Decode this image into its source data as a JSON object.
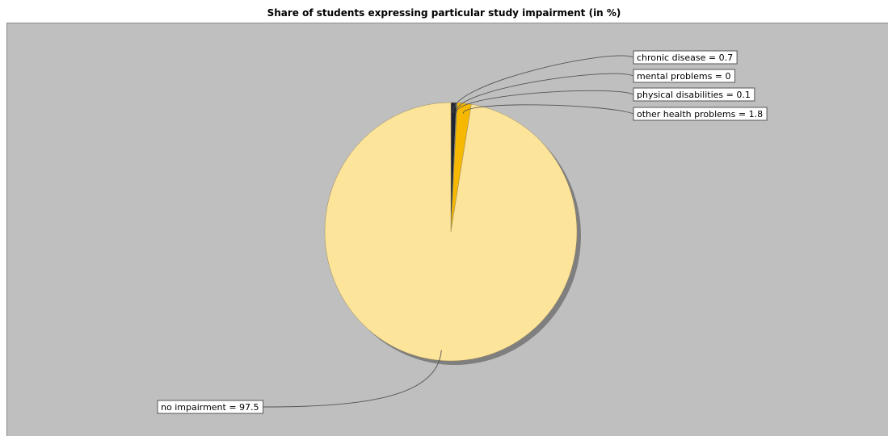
{
  "chart_data": {
    "type": "pie",
    "title": "Share of students expressing particular study impairment (in %)",
    "slices": [
      {
        "name": "chronic disease",
        "value": 0.7,
        "label": "chronic disease = 0.7",
        "color": "#1f2433"
      },
      {
        "name": "mental problems",
        "value": 0,
        "label": "mental problems = 0",
        "color": "#0b3d7a"
      },
      {
        "name": "physical disabilities",
        "value": 0.1,
        "label": "physical disabilities = 0.1",
        "color": "#3d7fb8"
      },
      {
        "name": "other health problems",
        "value": 1.8,
        "label": "other health problems = 1.8",
        "color": "#f6b800"
      },
      {
        "name": "no impairment",
        "value": 97.5,
        "label": "no impairment = 97.5",
        "color": "#fde49b"
      }
    ],
    "legend": "none",
    "background": "#bfbfbf"
  }
}
